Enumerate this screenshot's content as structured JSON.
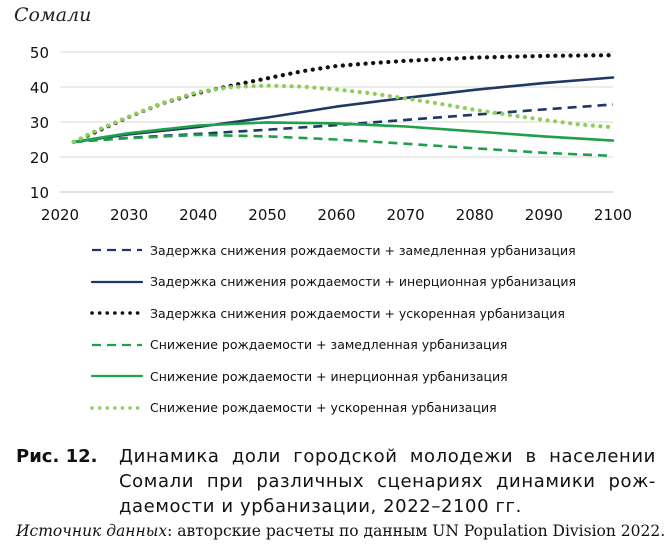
{
  "chart_data": {
    "type": "line",
    "title": "Сомали",
    "xlim": [
      2020,
      2100
    ],
    "ylim": [
      10,
      50
    ],
    "x_ticks": [
      2020,
      2030,
      2040,
      2050,
      2060,
      2070,
      2080,
      2090,
      2100
    ],
    "y_ticks": [
      10,
      20,
      30,
      40,
      50
    ],
    "grid": "horizontal",
    "legend_position": "bottom",
    "series": [
      {
        "name": "Задержка снижения рождаемости + замедленная урбанизация",
        "color": "#1f3864",
        "style": "dashed",
        "x": [
          2022,
          2030,
          2040,
          2050,
          2060,
          2070,
          2080,
          2090,
          2100
        ],
        "y": [
          24.3,
          25.5,
          26.6,
          27.8,
          29.1,
          30.6,
          32.1,
          33.6,
          35.0
        ]
      },
      {
        "name": "Задержка снижения рождаемости + инерционная урбанизация",
        "color": "#1f3864",
        "style": "solid",
        "x": [
          2022,
          2030,
          2040,
          2050,
          2060,
          2070,
          2080,
          2090,
          2100
        ],
        "y": [
          24.3,
          26.5,
          28.6,
          31.3,
          34.4,
          36.9,
          39.2,
          41.1,
          42.7
        ]
      },
      {
        "name": "Задержка снижения рождаемости + ускоренная урбанизация",
        "color": "#111111",
        "style": "dotted",
        "x": [
          2022,
          2025,
          2030,
          2035,
          2040,
          2045,
          2050,
          2055,
          2060,
          2065,
          2070,
          2080,
          2090,
          2100
        ],
        "y": [
          24.3,
          27.0,
          31.5,
          35.5,
          38.3,
          40.5,
          42.5,
          44.5,
          46.0,
          46.8,
          47.5,
          48.4,
          48.9,
          49.1
        ]
      },
      {
        "name": "Снижение рождаемости + замедленная урбанизация",
        "color": "#1fa04a",
        "style": "dashed",
        "x": [
          2022,
          2030,
          2040,
          2050,
          2060,
          2070,
          2080,
          2090,
          2100
        ],
        "y": [
          24.3,
          25.4,
          26.3,
          25.9,
          25.0,
          23.8,
          22.5,
          21.2,
          20.3
        ]
      },
      {
        "name": "Снижение рождаемости + инерционная урбанизация",
        "color": "#1fa04a",
        "style": "solid",
        "x": [
          2022,
          2030,
          2040,
          2050,
          2060,
          2070,
          2080,
          2090,
          2100
        ],
        "y": [
          24.3,
          26.8,
          29.0,
          29.9,
          29.6,
          28.7,
          27.3,
          25.9,
          24.7
        ]
      },
      {
        "name": "Снижение рождаемости + ускоренная урбанизация",
        "color": "#8fce5a",
        "style": "dotted",
        "x": [
          2022,
          2025,
          2030,
          2035,
          2040,
          2045,
          2050,
          2055,
          2060,
          2065,
          2070,
          2075,
          2080,
          2085,
          2090,
          2095,
          2100
        ],
        "y": [
          24.3,
          27.3,
          31.6,
          35.6,
          38.6,
          40.0,
          40.4,
          40.1,
          39.3,
          38.2,
          36.7,
          35.2,
          33.5,
          32.0,
          30.6,
          29.3,
          28.5
        ]
      }
    ]
  },
  "caption": {
    "number": "Рис. 12.",
    "text": "Динамика доли городской молодежи в населении Сомали при различных сценариях динамики рож-даемости и урбанизации, 2022–2100 гг."
  },
  "source": {
    "label": "Источник данных",
    "text": ": авторские расчеты по данным UN Population Division 2022."
  }
}
